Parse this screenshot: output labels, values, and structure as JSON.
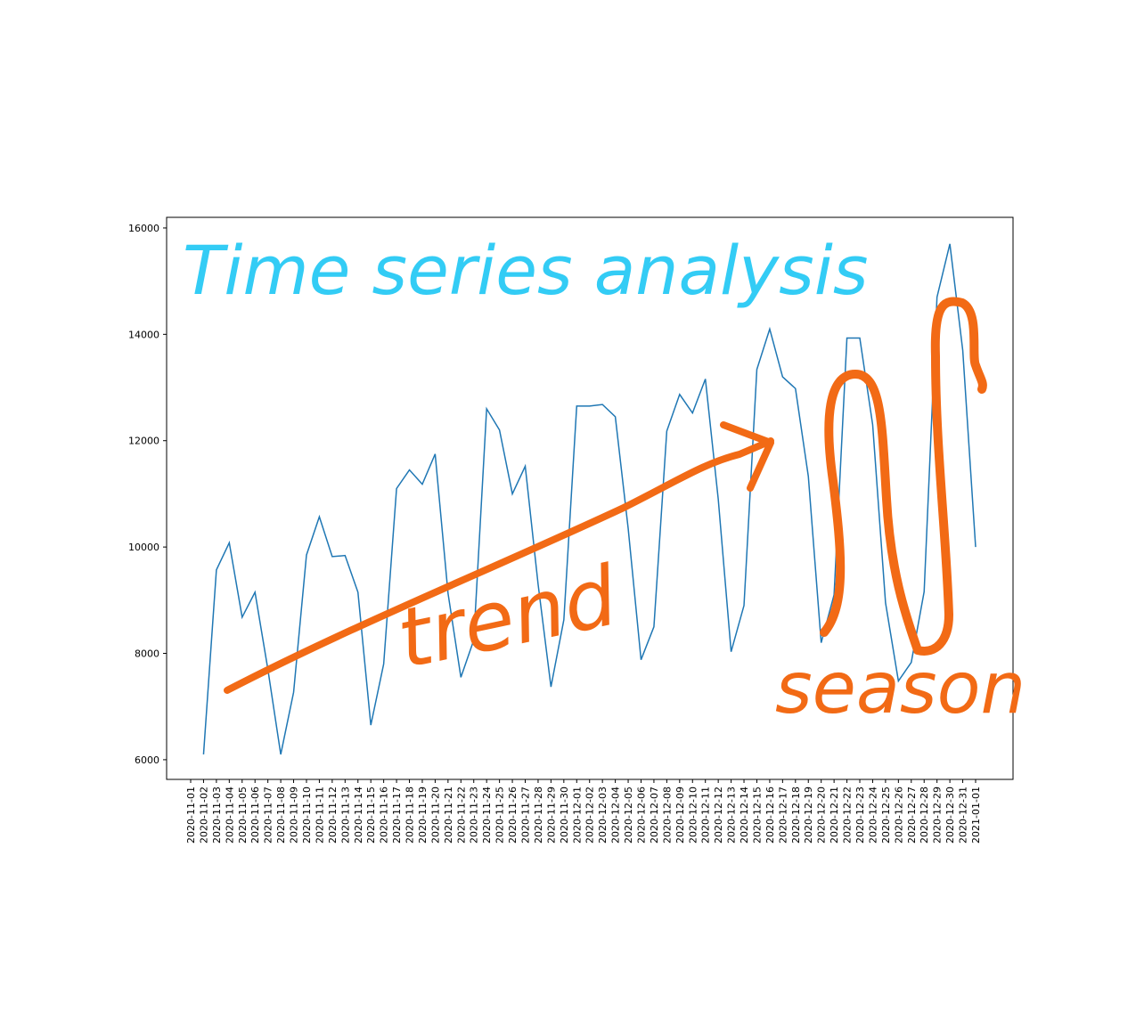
{
  "chart_data": {
    "type": "line",
    "categories": [
      "2020-11-01",
      "2020-11-02",
      "2020-11-03",
      "2020-11-04",
      "2020-11-05",
      "2020-11-06",
      "2020-11-07",
      "2020-11-08",
      "2020-11-09",
      "2020-11-10",
      "2020-11-11",
      "2020-11-12",
      "2020-11-13",
      "2020-11-14",
      "2020-11-15",
      "2020-11-16",
      "2020-11-17",
      "2020-11-18",
      "2020-11-19",
      "2020-11-20",
      "2020-11-21",
      "2020-11-22",
      "2020-11-23",
      "2020-11-24",
      "2020-11-25",
      "2020-11-26",
      "2020-11-27",
      "2020-11-28",
      "2020-11-29",
      "2020-11-30",
      "2020-12-01",
      "2020-12-02",
      "2020-12-03",
      "2020-12-04",
      "2020-12-05",
      "2020-12-06",
      "2020-12-07",
      "2020-12-08",
      "2020-12-09",
      "2020-12-10",
      "2020-12-11",
      "2020-12-12",
      "2020-12-13",
      "2020-12-14",
      "2020-12-15",
      "2020-12-16",
      "2020-12-17",
      "2020-12-18",
      "2020-12-19",
      "2020-12-20",
      "2020-12-21",
      "2020-12-22",
      "2020-12-23",
      "2020-12-24",
      "2020-12-25",
      "2020-12-26",
      "2020-12-27",
      "2020-12-28",
      "2020-12-29",
      "2020-12-30",
      "2020-12-31",
      "2021-01-01"
    ],
    "series": [
      {
        "color": "#1f77b4",
        "values": [
          null,
          6100,
          9570,
          10080,
          8680,
          9150,
          7700,
          6100,
          7270,
          9850,
          10570,
          9820,
          9840,
          9150,
          6650,
          7800,
          11100,
          11450,
          11180,
          11750,
          9130,
          7550,
          8250,
          12600,
          12200,
          11000,
          11520,
          9300,
          7370,
          8630,
          12650,
          12650,
          12680,
          12450,
          10350,
          7880,
          8500,
          12180,
          12870,
          12520,
          13160,
          10900,
          8030,
          8900,
          13340,
          14100,
          13200,
          12980,
          11330,
          8200,
          9100,
          13930,
          13930,
          12300,
          8950,
          7480,
          7830,
          9160,
          14700,
          15700,
          13700,
          10000
        ]
      }
    ],
    "ylim": [
      5630,
      16200
    ],
    "yticks": [
      6000,
      8000,
      10000,
      12000,
      14000,
      16000
    ],
    "annotations": {
      "title": "Time series analysis",
      "trend": "trend",
      "season": "season"
    }
  }
}
